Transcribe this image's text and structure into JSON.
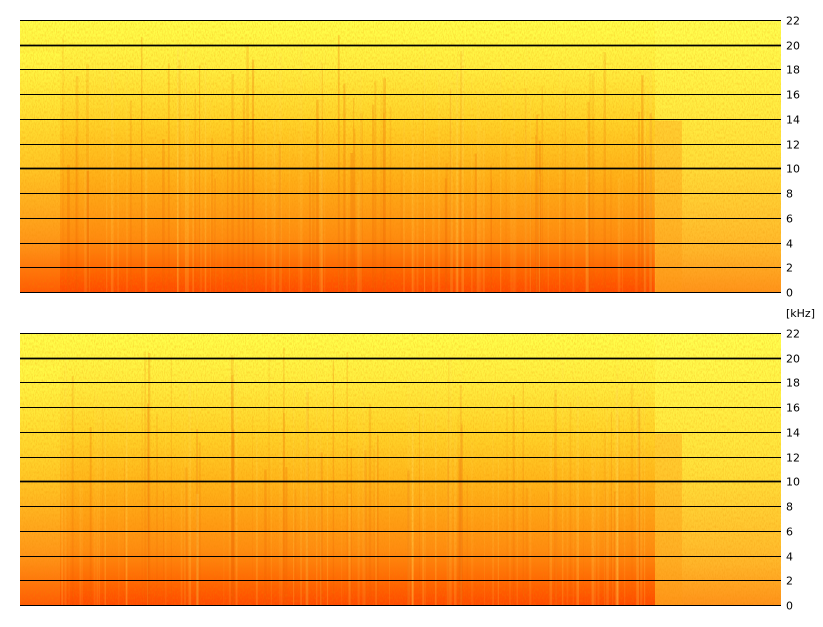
{
  "chart_data": [
    {
      "type": "heatmap",
      "channel": 1,
      "title": "",
      "xlabel": "",
      "ylabel": "",
      "ylim": [
        0,
        22
      ],
      "ytick_values": [
        0,
        2,
        4,
        6,
        8,
        10,
        12,
        14,
        16,
        18,
        20,
        22
      ],
      "ytick_labels": [
        "0",
        "2",
        "4",
        "6",
        "8",
        "10",
        "12",
        "14",
        "16",
        "18",
        "20",
        "22"
      ],
      "major_gridlines": [
        10,
        20
      ],
      "grid": true,
      "colormap": [
        "#ffff40",
        "#ffd520",
        "#ffa010",
        "#ff5a00",
        "#e02a00"
      ]
    },
    {
      "type": "heatmap",
      "channel": 2,
      "title": "",
      "xlabel": "",
      "ylabel": "",
      "ylim": [
        0,
        22
      ],
      "ytick_values": [
        0,
        2,
        4,
        6,
        8,
        10,
        12,
        14,
        16,
        18,
        20,
        22
      ],
      "ytick_labels": [
        "0",
        "2",
        "4",
        "6",
        "8",
        "10",
        "12",
        "14",
        "16",
        "18",
        "20",
        "22"
      ],
      "major_gridlines": [
        10,
        20
      ],
      "grid": true,
      "colormap": [
        "#ffff40",
        "#ffd520",
        "#ffa010",
        "#ff5a00",
        "#e02a00"
      ]
    }
  ],
  "y_unit": "[kHz]",
  "colors": {
    "background": "#ffffff",
    "gridline": "#000000"
  }
}
